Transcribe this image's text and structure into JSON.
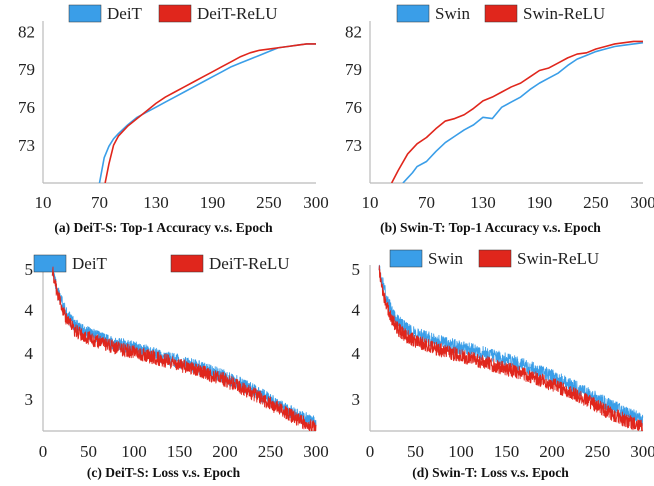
{
  "colors": {
    "blue": "#3a9ee8",
    "red": "#e0261c",
    "axis": "#bbbbbb",
    "text": "#222222"
  },
  "chart_data": [
    {
      "type": "line",
      "caption": "(a) DeiT-S: Top-1 Accuracy v.s. Epoch",
      "xticks": [
        "10",
        "70",
        "130",
        "190",
        "250",
        "300"
      ],
      "yticks": [
        "73",
        "76",
        "79",
        "82"
      ],
      "xlim": [
        10,
        300
      ],
      "ylim": [
        70,
        82.5
      ],
      "noisy": false,
      "series": [
        {
          "name": "DeiT",
          "color": "#3a9ee8",
          "x": [
            70,
            75,
            80,
            85,
            90,
            100,
            110,
            120,
            130,
            140,
            150,
            160,
            170,
            180,
            190,
            200,
            210,
            220,
            230,
            240,
            250,
            260,
            270,
            280,
            290,
            300
          ],
          "y": [
            70,
            72.0,
            72.9,
            73.5,
            73.9,
            74.6,
            75.2,
            75.6,
            76.0,
            76.4,
            76.8,
            77.2,
            77.6,
            78.0,
            78.4,
            78.8,
            79.2,
            79.5,
            79.8,
            80.1,
            80.4,
            80.7,
            80.8,
            80.9,
            81.0,
            81.0
          ]
        },
        {
          "name": "DeiT-ReLU",
          "color": "#e0261c",
          "x": [
            76,
            80,
            85,
            90,
            100,
            110,
            120,
            130,
            140,
            150,
            160,
            170,
            180,
            190,
            200,
            210,
            220,
            230,
            240,
            250,
            260,
            270,
            280,
            290,
            300
          ],
          "y": [
            70,
            71.5,
            73.0,
            73.7,
            74.5,
            75.1,
            75.7,
            76.3,
            76.8,
            77.2,
            77.6,
            78.0,
            78.4,
            78.8,
            79.2,
            79.6,
            80.0,
            80.3,
            80.5,
            80.6,
            80.7,
            80.8,
            80.9,
            81.0,
            81.0
          ]
        }
      ]
    },
    {
      "type": "line",
      "caption": "(b) Swin-T: Top-1 Accuracy v.s. Epoch",
      "xticks": [
        "10",
        "70",
        "130",
        "190",
        "250",
        "300"
      ],
      "yticks": [
        "73",
        "76",
        "79",
        "82"
      ],
      "xlim": [
        10,
        300
      ],
      "ylim": [
        70,
        82.5
      ],
      "noisy": false,
      "series": [
        {
          "name": "Swin",
          "color": "#3a9ee8",
          "x": [
            45,
            50,
            55,
            60,
            70,
            80,
            90,
            100,
            110,
            120,
            130,
            140,
            150,
            160,
            170,
            180,
            190,
            200,
            210,
            220,
            230,
            240,
            250,
            260,
            270,
            280,
            290,
            300
          ],
          "y": [
            70,
            70.4,
            70.8,
            71.3,
            71.7,
            72.5,
            73.2,
            73.7,
            74.2,
            74.6,
            75.2,
            75.1,
            76.0,
            76.4,
            76.8,
            77.4,
            77.9,
            78.3,
            78.7,
            79.3,
            79.8,
            80.1,
            80.4,
            80.6,
            80.8,
            80.9,
            81.0,
            81.1
          ]
        },
        {
          "name": "Swin-ReLU",
          "color": "#e0261c",
          "x": [
            33,
            40,
            50,
            60,
            70,
            80,
            90,
            100,
            110,
            120,
            130,
            140,
            150,
            160,
            170,
            180,
            190,
            200,
            210,
            220,
            230,
            240,
            250,
            260,
            270,
            280,
            290,
            300
          ],
          "y": [
            70,
            71.0,
            72.3,
            73.1,
            73.6,
            74.3,
            74.9,
            75.1,
            75.4,
            75.9,
            76.5,
            76.8,
            77.2,
            77.6,
            77.9,
            78.4,
            78.9,
            79.1,
            79.5,
            79.9,
            80.2,
            80.3,
            80.6,
            80.8,
            81.0,
            81.1,
            81.2,
            81.2
          ]
        }
      ]
    },
    {
      "type": "line",
      "caption": "(c) DeiT-S: Loss v.s. Epoch",
      "xticks": [
        "0",
        "50",
        "100",
        "150",
        "200",
        "250",
        "300"
      ],
      "yticks": [
        "3",
        "4",
        "4",
        "5"
      ],
      "xlim": [
        0,
        300
      ],
      "ylim": [
        2.2,
        5
      ],
      "noisy": true,
      "series": [
        {
          "name": "DeiT",
          "color": "#3a9ee8",
          "x": [
            10,
            15,
            20,
            25,
            30,
            35,
            40,
            50,
            60,
            70,
            80,
            90,
            100,
            120,
            140,
            160,
            180,
            200,
            220,
            240,
            260,
            280,
            300
          ],
          "y": [
            5.0,
            4.7,
            4.45,
            4.25,
            4.12,
            4.03,
            3.97,
            3.89,
            3.82,
            3.76,
            3.71,
            3.67,
            3.63,
            3.54,
            3.45,
            3.36,
            3.25,
            3.14,
            2.99,
            2.82,
            2.64,
            2.47,
            2.33
          ]
        },
        {
          "name": "DeiT-ReLU",
          "color": "#e0261c",
          "x": [
            10,
            15,
            20,
            25,
            30,
            35,
            40,
            50,
            60,
            70,
            80,
            90,
            100,
            120,
            140,
            160,
            180,
            200,
            220,
            240,
            260,
            280,
            300
          ],
          "y": [
            5.0,
            4.62,
            4.35,
            4.16,
            4.04,
            3.95,
            3.89,
            3.81,
            3.75,
            3.69,
            3.64,
            3.6,
            3.57,
            3.48,
            3.39,
            3.3,
            3.19,
            3.08,
            2.93,
            2.76,
            2.58,
            2.4,
            2.25
          ]
        }
      ]
    },
    {
      "type": "line",
      "caption": "(d) Swin-T: Loss v.s. Epoch",
      "xticks": [
        "0",
        "50",
        "100",
        "150",
        "200",
        "250",
        "300"
      ],
      "yticks": [
        "3",
        "4",
        "4",
        "5"
      ],
      "xlim": [
        0,
        300
      ],
      "ylim": [
        2.2,
        5
      ],
      "noisy": true,
      "series": [
        {
          "name": "Swin",
          "color": "#3a9ee8",
          "x": [
            10,
            15,
            20,
            25,
            30,
            35,
            40,
            50,
            60,
            70,
            80,
            90,
            100,
            120,
            140,
            160,
            180,
            200,
            220,
            240,
            260,
            280,
            300
          ],
          "y": [
            5.0,
            4.68,
            4.42,
            4.22,
            4.1,
            4.02,
            3.96,
            3.88,
            3.82,
            3.77,
            3.72,
            3.68,
            3.64,
            3.56,
            3.47,
            3.38,
            3.27,
            3.15,
            3.0,
            2.84,
            2.67,
            2.52,
            2.4
          ]
        },
        {
          "name": "Swin-ReLU",
          "color": "#e0261c",
          "x": [
            10,
            15,
            20,
            25,
            30,
            35,
            40,
            50,
            60,
            70,
            80,
            90,
            100,
            120,
            140,
            160,
            180,
            200,
            220,
            240,
            260,
            280,
            300
          ],
          "y": [
            5.0,
            4.55,
            4.28,
            4.1,
            3.98,
            3.9,
            3.84,
            3.76,
            3.7,
            3.64,
            3.59,
            3.54,
            3.5,
            3.41,
            3.32,
            3.23,
            3.12,
            3.01,
            2.87,
            2.71,
            2.54,
            2.39,
            2.27
          ]
        }
      ]
    }
  ]
}
